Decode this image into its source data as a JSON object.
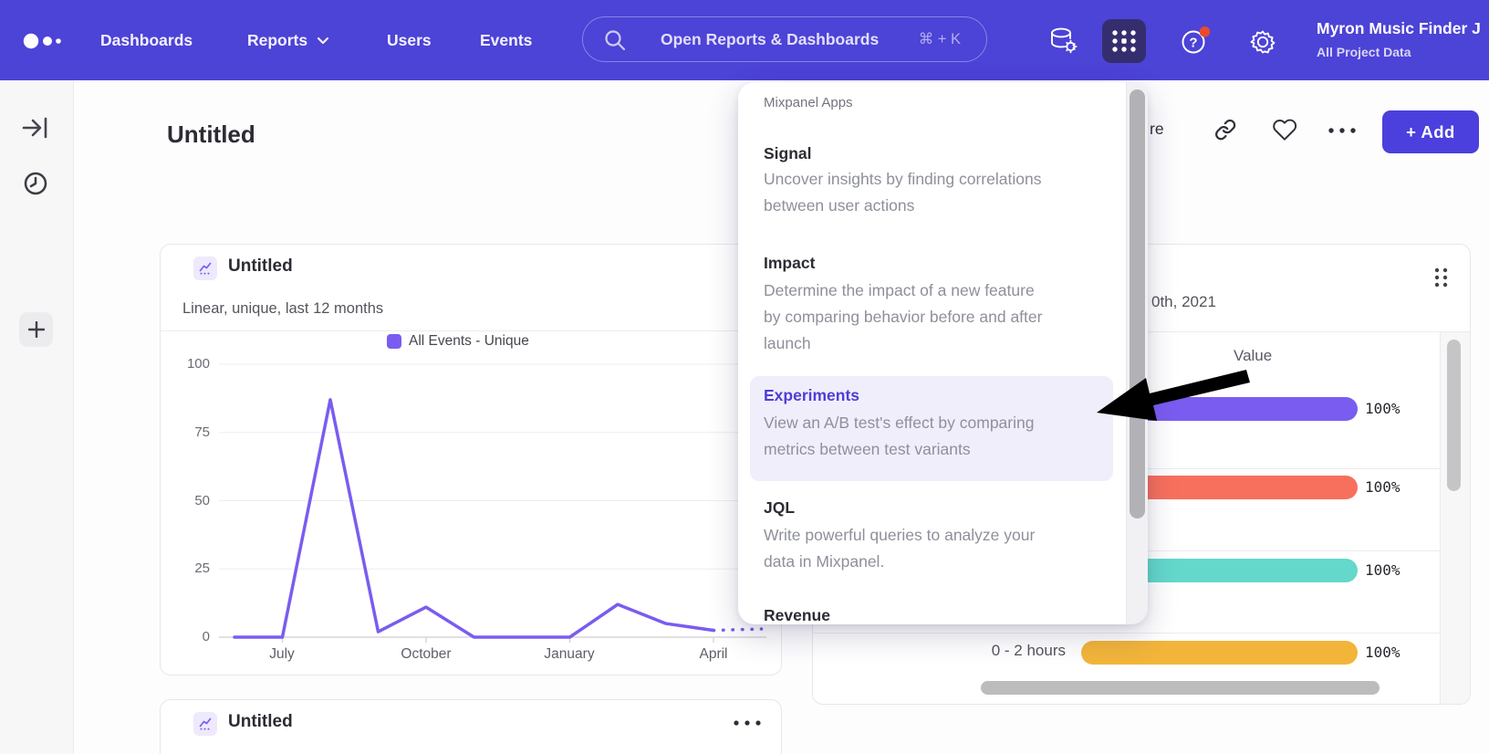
{
  "nav": {
    "items": [
      {
        "label": "Dashboards"
      },
      {
        "label": "Reports"
      },
      {
        "label": "Users"
      },
      {
        "label": "Events"
      }
    ],
    "search": {
      "placeholder": "Open Reports & Dashboards",
      "shortcut": "⌘ + K"
    },
    "help_text": "?",
    "user": {
      "name": "Myron Music Finder J",
      "project": "All Project Data"
    }
  },
  "page": {
    "title": "Untitled",
    "share_label_fragment": "re",
    "add_button_label": "+ Add"
  },
  "apps_menu": {
    "header": "Mixpanel Apps",
    "items": [
      {
        "title": "Signal",
        "lines": [
          "Uncover insights by finding correlations",
          "between user actions"
        ],
        "active": false
      },
      {
        "title": "Impact",
        "lines": [
          "Determine the impact of a new feature",
          "by comparing behavior before and after",
          "launch"
        ],
        "active": false
      },
      {
        "title": "Experiments",
        "lines": [
          "View an A/B test's effect by comparing",
          "metrics between test variants"
        ],
        "active": true
      },
      {
        "title": "JQL",
        "lines": [
          "Write powerful queries to analyze your",
          "data in Mixpanel."
        ],
        "active": false
      },
      {
        "title": "Revenue",
        "lines": [],
        "active": false,
        "clipped": true
      }
    ]
  },
  "left_card": {
    "title": "Untitled",
    "subtitle": "Linear, unique, last 12 months",
    "legend": "All Events - Unique"
  },
  "bottom_card": {
    "title": "Untitled"
  },
  "chart_data": [
    {
      "type": "line",
      "title": "Untitled",
      "subtitle": "Linear, unique, last 12 months",
      "legend": [
        "All Events - Unique"
      ],
      "values": [
        0,
        0,
        87,
        2,
        11,
        0,
        0,
        0,
        12,
        5,
        2.5,
        3
      ],
      "dotted_from_index": 10,
      "x_tick_labels": [
        "July",
        "October",
        "January",
        "April"
      ],
      "x_tick_indices": [
        1,
        4,
        7,
        10
      ],
      "y_ticks": [
        0,
        25,
        50,
        75,
        100
      ],
      "ylim": [
        0,
        100
      ],
      "grid": true,
      "legend_position": "top",
      "color": "#7a5cf0"
    },
    {
      "type": "bar",
      "orientation": "horizontal",
      "date_fragment": "0th, 2021",
      "column_header": "Value",
      "categories": [
        "",
        "",
        "",
        "0 - 2 hours"
      ],
      "values": [
        100,
        100,
        100,
        100
      ],
      "value_labels": [
        "100%",
        "100%",
        "100%",
        "100%"
      ],
      "colors": [
        "#7a5cf0",
        "#f7705d",
        "#64d8cb",
        "#f2b53a"
      ],
      "xlim": [
        0,
        100
      ]
    }
  ],
  "colors": {
    "navbar": "#4c43d7",
    "accent_purple": "#7a5cf0",
    "bar_red": "#f7705d",
    "bar_teal": "#64d8cb",
    "bar_yellow": "#f2b53a",
    "active_app_button_bg": "#352e6e",
    "notification_dot": "#e74b2b",
    "experiments_highlight_bg": "#f1eefb",
    "experiments_title": "#4d3fd6",
    "add_button_bg": "#4b40dd"
  }
}
